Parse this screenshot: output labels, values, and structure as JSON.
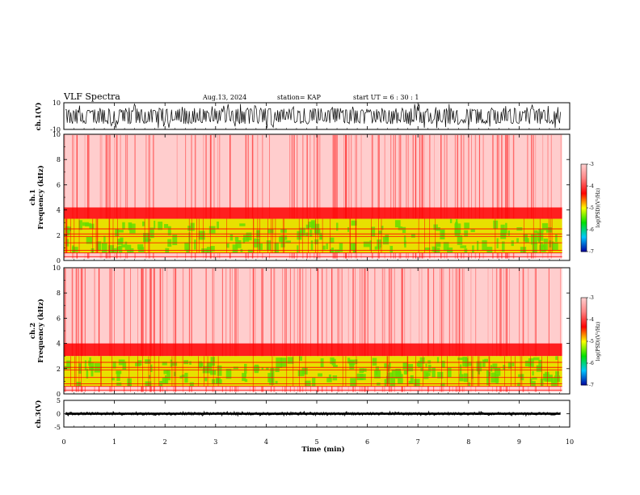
{
  "header": {
    "title": "VLF Spectra",
    "date": "Aug.13, 2024",
    "station": "station= KAP",
    "start": "start  UT  =   6  : 30 : 1"
  },
  "chart_data": {
    "type": "heatmap",
    "x_axis": {
      "label": "Time  (min)",
      "range": [
        0,
        10
      ],
      "ticks": [
        "0",
        "1",
        "2",
        "3",
        "4",
        "5",
        "6",
        "7",
        "8",
        "9",
        "10"
      ],
      "data_end": 9.85
    },
    "panels": [
      {
        "id": "ch1-waveform",
        "type": "line",
        "ylabel": "ch.1(V)",
        "ylim": [
          -10,
          10
        ],
        "yticks": [
          "10",
          "-10"
        ],
        "envelope": {
          "low": -6,
          "high": 6
        }
      },
      {
        "id": "ch1-spectrogram",
        "type": "heatmap",
        "ylabel": "ch.1\nFrequency  (kHz)",
        "ylim": [
          0,
          10
        ],
        "yticks": [
          "0",
          "2",
          "4",
          "6",
          "8",
          "10"
        ],
        "bands": {
          "green_khz": [
            0.6,
            3.3
          ],
          "red_khz": [
            3.3,
            4.2
          ],
          "lines_khz": [
            0.3,
            0.6,
            0.8,
            1.4,
            1.9,
            2.1,
            2.5
          ]
        },
        "colorbar": {
          "label": "log(PSD)(V²/Hz)",
          "range": [
            -7,
            -3
          ],
          "ticks": [
            "-3",
            "-4",
            "-5",
            "-6",
            "-7"
          ]
        }
      },
      {
        "id": "ch2-spectrogram",
        "type": "heatmap",
        "ylabel": "ch.2\nFrequency  (kHz)",
        "ylim": [
          0,
          10
        ],
        "yticks": [
          "0",
          "2",
          "4",
          "6",
          "8",
          "10"
        ],
        "bands": {
          "green_khz": [
            0.6,
            3.0
          ],
          "red_khz": [
            3.0,
            4.0
          ],
          "lines_khz": [
            0.3,
            0.6,
            0.8,
            1.3,
            1.9,
            2.1,
            2.5
          ]
        },
        "colorbar": {
          "label": "log(PSD)(V²/Hz)",
          "range": [
            -7,
            -3
          ],
          "ticks": [
            "-3",
            "-4",
            "-5",
            "-6",
            "-7"
          ]
        }
      },
      {
        "id": "ch3-waveform",
        "type": "line",
        "ylabel": "ch.3(V)",
        "ylim": [
          -5,
          5
        ],
        "yticks": [
          "5",
          "0",
          "-5"
        ],
        "envelope": {
          "low": -0.5,
          "high": 0.5
        }
      }
    ],
    "colors": {
      "sparse": "#ff7070",
      "dense": "#ff0000",
      "yellow": "#e8e000",
      "green": "#66dd00",
      "line": "#000000"
    }
  }
}
